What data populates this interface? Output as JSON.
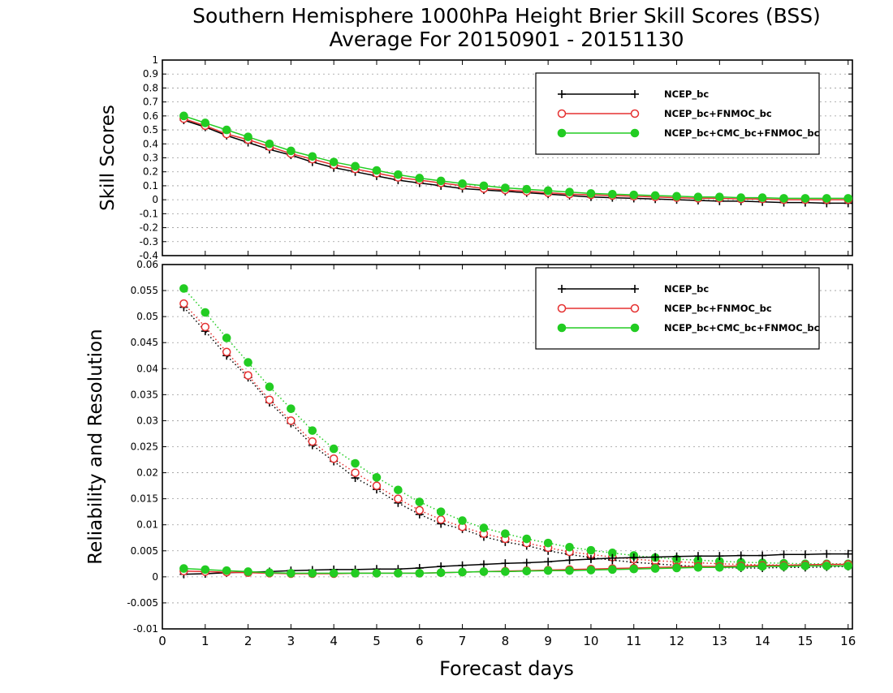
{
  "title": "Southern Hemisphere 1000hPa Height Brier Skill Scores (BSS)",
  "subtitle": "Average For 20150901 - 20151130",
  "xlabel": "Forecast days",
  "chart_data": [
    {
      "type": "line",
      "ylabel": "Skill Scores",
      "xlim": [
        0,
        16.1
      ],
      "ylim": [
        -0.4,
        1
      ],
      "grid": true,
      "legend_position": "top-right",
      "x_ticks": [
        "0",
        "1",
        "2",
        "3",
        "4",
        "5",
        "6",
        "7",
        "8",
        "9",
        "10",
        "11",
        "12",
        "13",
        "14",
        "15",
        "16"
      ],
      "y_ticks": [
        "-0.4",
        "-0.3",
        "-0.2",
        "-0.1",
        "0",
        "0.1",
        "0.2",
        "0.3",
        "0.4",
        "0.5",
        "0.6",
        "0.7",
        "0.8",
        "0.9",
        "1"
      ],
      "x": [
        0.5,
        1,
        1.5,
        2,
        2.5,
        3,
        3.5,
        4,
        4.5,
        5,
        5.5,
        6,
        6.5,
        7,
        7.5,
        8,
        8.5,
        9,
        9.5,
        10,
        10.5,
        11,
        11.5,
        12,
        12.5,
        13,
        13.5,
        14,
        14.5,
        15,
        15.5,
        16
      ],
      "series": [
        {
          "name": "NCEP_bc",
          "color": "#000000",
          "marker": "plus",
          "style": "solid",
          "values": [
            0.57,
            0.52,
            0.46,
            0.41,
            0.36,
            0.32,
            0.27,
            0.23,
            0.2,
            0.17,
            0.14,
            0.12,
            0.1,
            0.08,
            0.07,
            0.06,
            0.05,
            0.04,
            0.03,
            0.02,
            0.015,
            0.01,
            0.005,
            0,
            -0.005,
            -0.01,
            -0.01,
            -0.015,
            -0.02,
            -0.02,
            -0.025,
            -0.025
          ]
        },
        {
          "name": "NCEP_bc+FNMOC_bc",
          "color": "#e53030",
          "marker": "circle-open",
          "style": "solid",
          "values": [
            0.58,
            0.53,
            0.47,
            0.43,
            0.38,
            0.33,
            0.29,
            0.25,
            0.22,
            0.19,
            0.16,
            0.14,
            0.12,
            0.1,
            0.08,
            0.07,
            0.06,
            0.05,
            0.04,
            0.035,
            0.03,
            0.025,
            0.02,
            0.015,
            0.01,
            0.01,
            0.005,
            0.005,
            0,
            0,
            0,
            0
          ]
        },
        {
          "name": "NCEP_bc+CMC_bc+FNMOC_bc",
          "color": "#22cc22",
          "marker": "circle-filled",
          "style": "solid",
          "values": [
            0.6,
            0.55,
            0.5,
            0.45,
            0.4,
            0.35,
            0.31,
            0.27,
            0.24,
            0.21,
            0.18,
            0.155,
            0.135,
            0.115,
            0.1,
            0.085,
            0.075,
            0.065,
            0.055,
            0.045,
            0.04,
            0.035,
            0.03,
            0.025,
            0.02,
            0.02,
            0.015,
            0.015,
            0.01,
            0.01,
            0.01,
            0.01
          ]
        }
      ]
    },
    {
      "type": "line",
      "ylabel": "Reliability and Resolution",
      "xlim": [
        0,
        16.1
      ],
      "ylim": [
        -0.01,
        0.06
      ],
      "grid": true,
      "legend_position": "top-right",
      "x_ticks": [
        "0",
        "1",
        "2",
        "3",
        "4",
        "5",
        "6",
        "7",
        "8",
        "9",
        "10",
        "11",
        "12",
        "13",
        "14",
        "15",
        "16"
      ],
      "y_ticks": [
        "-0.01",
        "-0.005",
        "0",
        "0.005",
        "0.01",
        "0.015",
        "0.02",
        "0.025",
        "0.03",
        "0.035",
        "0.04",
        "0.045",
        "0.05",
        "0.055",
        "0.06"
      ],
      "x": [
        0.5,
        1,
        1.5,
        2,
        2.5,
        3,
        3.5,
        4,
        4.5,
        5,
        5.5,
        6,
        6.5,
        7,
        7.5,
        8,
        8.5,
        9,
        9.5,
        10,
        10.5,
        11,
        11.5,
        12,
        12.5,
        13,
        13.5,
        14,
        14.5,
        15,
        15.5,
        16
      ],
      "series": [
        {
          "name": "NCEP_bc",
          "color": "#000000",
          "marker": "plus",
          "style": "dotted",
          "group": "resolution",
          "values": [
            0.0518,
            0.0472,
            0.0425,
            0.0383,
            0.0335,
            0.0295,
            0.0253,
            0.0222,
            0.019,
            0.0168,
            0.0142,
            0.012,
            0.0102,
            0.0092,
            0.0077,
            0.0067,
            0.006,
            0.005,
            0.0043,
            0.0037,
            0.0032,
            0.0028,
            0.0025,
            0.0022,
            0.002,
            0.0018,
            0.0017,
            0.0017,
            0.0018,
            0.0018,
            0.0019,
            0.002
          ]
        },
        {
          "name": "NCEP_bc+FNMOC_bc",
          "color": "#e53030",
          "marker": "circle-open",
          "style": "dotted",
          "group": "resolution",
          "values": [
            0.0525,
            0.048,
            0.0432,
            0.0387,
            0.034,
            0.03,
            0.026,
            0.0227,
            0.02,
            0.0175,
            0.015,
            0.0128,
            0.011,
            0.0096,
            0.0083,
            0.0073,
            0.0065,
            0.0056,
            0.0048,
            0.0043,
            0.0038,
            0.0034,
            0.0031,
            0.0029,
            0.0027,
            0.0025,
            0.0024,
            0.0023,
            0.0023,
            0.0023,
            0.0023,
            0.0024
          ]
        },
        {
          "name": "NCEP_bc+CMC_bc+FNMOC_bc",
          "color": "#22cc22",
          "marker": "circle-filled",
          "style": "dotted",
          "group": "resolution",
          "values": [
            0.0554,
            0.0508,
            0.0459,
            0.0412,
            0.0365,
            0.0323,
            0.0281,
            0.0246,
            0.0218,
            0.0191,
            0.0167,
            0.0144,
            0.0125,
            0.0108,
            0.0094,
            0.0083,
            0.0073,
            0.0065,
            0.0057,
            0.0051,
            0.0046,
            0.0041,
            0.0037,
            0.0034,
            0.0032,
            0.003,
            0.0028,
            0.0027,
            0.0026,
            0.0025,
            0.0025,
            0.0025
          ]
        },
        {
          "name": "NCEP_bc",
          "color": "#000000",
          "marker": "plus",
          "style": "solid",
          "group": "reliability",
          "values": [
            0.0005,
            0.0006,
            0.0008,
            0.0009,
            0.001,
            0.0012,
            0.0013,
            0.0014,
            0.0014,
            0.0015,
            0.0015,
            0.0017,
            0.002,
            0.0022,
            0.0024,
            0.0026,
            0.0027,
            0.0029,
            0.0032,
            0.0034,
            0.0036,
            0.0037,
            0.0038,
            0.0039,
            0.004,
            0.004,
            0.0041,
            0.0041,
            0.0043,
            0.0043,
            0.0044,
            0.0044
          ]
        },
        {
          "name": "NCEP_bc+FNMOC_bc",
          "color": "#e53030",
          "marker": "circle-open",
          "style": "solid",
          "group": "reliability",
          "values": [
            0.0011,
            0.001,
            0.0009,
            0.0008,
            0.0007,
            0.0006,
            0.0006,
            0.0006,
            0.0007,
            0.0007,
            0.0007,
            0.0007,
            0.0008,
            0.0009,
            0.001,
            0.0011,
            0.0012,
            0.0013,
            0.0014,
            0.0015,
            0.0016,
            0.0017,
            0.0018,
            0.0019,
            0.002,
            0.002,
            0.0021,
            0.0022,
            0.0022,
            0.0023,
            0.0024,
            0.0024
          ]
        },
        {
          "name": "NCEP_bc+CMC_bc+FNMOC_bc",
          "color": "#22cc22",
          "marker": "circle-filled",
          "style": "solid",
          "group": "reliability",
          "values": [
            0.0016,
            0.0014,
            0.0012,
            0.001,
            0.0008,
            0.0007,
            0.0007,
            0.0007,
            0.0007,
            0.0007,
            0.0007,
            0.0007,
            0.0008,
            0.0009,
            0.001,
            0.001,
            0.0011,
            0.0012,
            0.0012,
            0.0013,
            0.0014,
            0.0015,
            0.0016,
            0.0017,
            0.0018,
            0.0018,
            0.0019,
            0.002,
            0.002,
            0.0021,
            0.0021,
            0.0021
          ]
        }
      ]
    }
  ]
}
